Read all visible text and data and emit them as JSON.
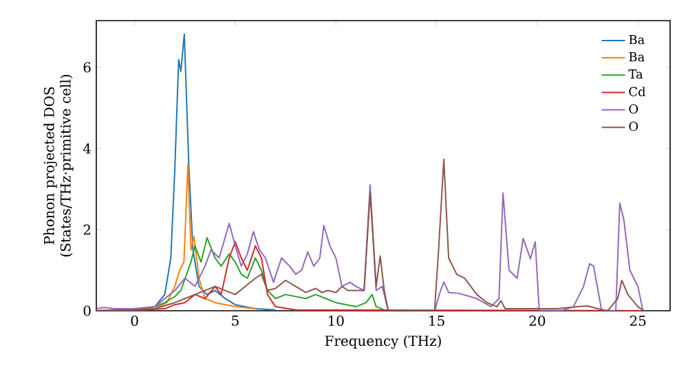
{
  "chart_data": {
    "type": "line",
    "xlabel": "Frequency (THz)",
    "ylabel": "Phonon projected DOS (States/THz·primitive cell)",
    "xlim": [
      -1.9,
      26.6
    ],
    "ylim": [
      0,
      7.15
    ],
    "xticks": [
      0,
      5,
      10,
      15,
      20,
      25
    ],
    "yticks": [
      0,
      2,
      4,
      6
    ],
    "legend": "top right",
    "grid": false,
    "marker": "none",
    "line_style": "solid",
    "series": [
      {
        "name": "Ba",
        "color": "#1f77b4",
        "x": [
          -1.9,
          0,
          1,
          1.5,
          1.8,
          2.0,
          2.19,
          2.3,
          2.47,
          2.7,
          2.9,
          3.2,
          3.6,
          4.0,
          4.5,
          5,
          6,
          7
        ],
        "values": [
          0,
          0.02,
          0.1,
          0.4,
          1.3,
          3.5,
          6.19,
          5.9,
          6.82,
          3.5,
          1.5,
          0.6,
          0.4,
          0.5,
          0.3,
          0.15,
          0.05,
          0.02
        ]
      },
      {
        "name": "Ba",
        "color": "#ff7f0e",
        "x": [
          -1.9,
          0,
          1,
          1.6,
          2.0,
          2.24,
          2.45,
          2.65,
          2.8,
          2.95,
          3.2,
          3.5,
          4.0,
          5,
          6
        ],
        "values": [
          0,
          0.02,
          0.05,
          0.2,
          0.6,
          1.0,
          1.2,
          3.62,
          1.5,
          1.83,
          0.8,
          0.3,
          0.2,
          0.1,
          0.05
        ]
      },
      {
        "name": "Ta",
        "color": "#2ca02c",
        "x": [
          -1.9,
          0,
          1,
          1.5,
          2.0,
          2.3,
          2.8,
          3.0,
          3.3,
          3.6,
          4.0,
          4.3,
          4.7,
          5.0,
          5.3,
          5.6,
          6.0,
          6.3,
          6.6,
          7,
          7.5,
          8,
          8.5,
          9,
          9.5,
          10,
          11,
          11.5,
          11.8,
          12,
          12.5,
          25.3
        ],
        "values": [
          0,
          0.02,
          0.1,
          0.2,
          0.35,
          0.5,
          1.2,
          1.6,
          1.2,
          1.8,
          1.3,
          1.1,
          1.4,
          1.2,
          0.9,
          0.8,
          1.3,
          1.0,
          0.5,
          0.3,
          0.4,
          0.35,
          0.3,
          0.4,
          0.3,
          0.2,
          0.1,
          0.2,
          0.4,
          0.1,
          0,
          0
        ]
      },
      {
        "name": "Cd",
        "color": "#d62728",
        "x": [
          -1.9,
          0,
          1.5,
          2,
          2.5,
          3,
          3.5,
          4,
          4.3,
          4.7,
          5.0,
          5.3,
          5.6,
          6.0,
          6.3,
          6.6,
          7,
          8,
          25.3
        ],
        "values": [
          0,
          0.01,
          0.05,
          0.15,
          0.2,
          0.4,
          0.3,
          0.6,
          0.4,
          1.3,
          1.7,
          1.3,
          1.0,
          1.6,
          1.3,
          0.4,
          0.1,
          0.02,
          0
        ]
      },
      {
        "name": "O",
        "color": "#9467bd",
        "x": [
          -1.9,
          -1.5,
          -1,
          0,
          1,
          2,
          2.5,
          3,
          3.5,
          3.8,
          4.2,
          4.7,
          5.0,
          5.3,
          5.6,
          5.9,
          6.2,
          6.5,
          6.9,
          7.3,
          7.7,
          8.0,
          8.3,
          8.6,
          8.9,
          9.2,
          9.4,
          9.7,
          10.0,
          10.3,
          10.7,
          11.0,
          11.4,
          11.7,
          12.0,
          12.3,
          12.6,
          14.9,
          15.2,
          15.36,
          15.6,
          16.1,
          17.0,
          17.7,
          18.1,
          18.3,
          18.6,
          19.0,
          19.3,
          19.66,
          19.9,
          20.1,
          21.2,
          21.8,
          22.3,
          22.6,
          22.8,
          23.2,
          23.9,
          24.1,
          24.3,
          24.6,
          25.0,
          25.25
        ],
        "values": [
          0.05,
          0.08,
          0.05,
          0.05,
          0.1,
          0.5,
          0.8,
          0.6,
          1.1,
          1.5,
          1.3,
          2.15,
          1.6,
          1.1,
          1.4,
          1.95,
          1.5,
          1.3,
          0.7,
          1.3,
          1.1,
          0.9,
          1.0,
          1.45,
          1.1,
          1.3,
          2.1,
          1.6,
          1.3,
          0.6,
          0.7,
          0.6,
          0.5,
          3.1,
          0.5,
          0.6,
          0,
          0,
          0.5,
          0.71,
          0.45,
          0.43,
          0.3,
          0.1,
          0.3,
          2.9,
          1.0,
          0.8,
          1.78,
          1.28,
          1.7,
          0,
          0,
          0.1,
          0.6,
          1.16,
          1.1,
          0,
          0,
          2.65,
          2.25,
          1.0,
          0.6,
          0
        ]
      },
      {
        "name": "O",
        "color": "#8c564b",
        "x": [
          -1.9,
          0,
          1,
          2,
          2.5,
          3,
          3.5,
          4,
          4.5,
          5,
          5.5,
          6,
          6.3,
          6.6,
          7,
          7.5,
          8,
          8.5,
          9,
          9.3,
          9.6,
          10,
          10.3,
          10.6,
          11,
          11.4,
          11.7,
          12.0,
          12.2,
          12.4,
          12.6,
          14.9,
          15.1,
          15.36,
          15.6,
          16.0,
          16.4,
          17.0,
          17.5,
          18,
          18.2,
          18.4,
          19,
          20,
          21,
          22,
          22.5,
          23,
          23.5,
          24.0,
          24.2,
          24.5,
          25,
          25.3
        ],
        "values": [
          0,
          0.02,
          0.05,
          0.2,
          0.3,
          0.4,
          0.5,
          0.6,
          0.5,
          0.4,
          0.6,
          0.8,
          0.9,
          0.5,
          0.55,
          0.75,
          0.6,
          0.45,
          0.55,
          0.45,
          0.5,
          0.45,
          0.6,
          0.5,
          0.5,
          0.5,
          2.9,
          0.6,
          1.35,
          0.5,
          0,
          0,
          1.5,
          3.73,
          1.3,
          0.9,
          0.8,
          0.4,
          0.2,
          0.1,
          0.25,
          0.05,
          0.05,
          0.05,
          0.05,
          0.1,
          0.12,
          0.05,
          0,
          0.3,
          0.75,
          0.4,
          0.1,
          0
        ]
      }
    ]
  }
}
